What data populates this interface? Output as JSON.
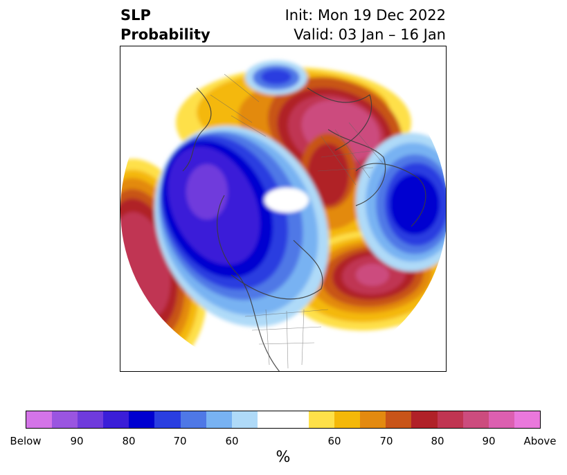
{
  "title": {
    "left_line1": "SLP",
    "left_line2": "Probability",
    "right_line1": "Init: Mon 19 Dec 2022",
    "right_line2": "Valid: 03 Jan – 16 Jan"
  },
  "colorbar": {
    "colors": [
      "#d474e8",
      "#9a55e0",
      "#6f3bdc",
      "#3b1ed8",
      "#0000d0",
      "#2a3ee0",
      "#4f78e6",
      "#78b2f2",
      "#afdaf8",
      "#ffffff",
      "#ffffff",
      "#fee049",
      "#f4b808",
      "#e38a10",
      "#c85419",
      "#b02128",
      "#c03552",
      "#cc4c7e",
      "#dc5fb0",
      "#ea78dc"
    ],
    "tick_labels": [
      "Below",
      "90",
      "80",
      "70",
      "60",
      "60",
      "70",
      "80",
      "90",
      "Above"
    ],
    "unit": "%"
  }
}
